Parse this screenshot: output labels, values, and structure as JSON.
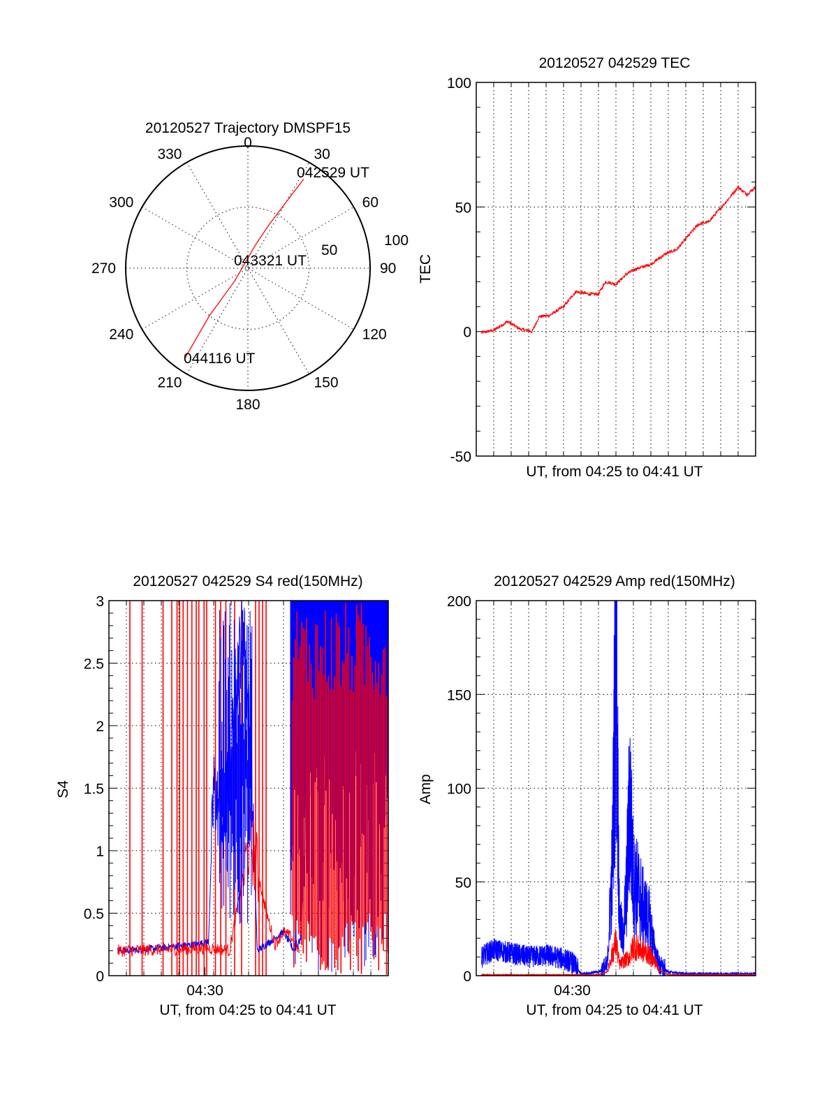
{
  "colors": {
    "red": "#ff0000",
    "blue": "#0000ff",
    "axis": "#000000",
    "background": "#ffffff"
  },
  "chart_data": [
    {
      "type": "polar",
      "title": "20120527 Trajectory DMSPF15",
      "azimuth_labels": [
        "0",
        "30",
        "60",
        "90",
        "120",
        "150",
        "180",
        "210",
        "240",
        "270",
        "300",
        "330"
      ],
      "radial_labels": [
        "50",
        "100"
      ],
      "radial_range": [
        0,
        100
      ],
      "series": [
        {
          "color": "#ff0000",
          "points": [
            {
              "az": 32,
              "r": 86
            },
            {
              "az": 30,
              "r": 62
            },
            {
              "az": 26,
              "r": 40
            },
            {
              "az": 18,
              "r": 20
            },
            {
              "az": 226,
              "r": 15
            },
            {
              "az": 219,
              "r": 50
            },
            {
              "az": 215,
              "r": 90
            }
          ]
        }
      ],
      "annotations": [
        {
          "text": "042529 UT",
          "az": 33,
          "r": 88
        },
        {
          "text": "043321 UT",
          "az": 74,
          "r": 10
        },
        {
          "text": "044116 UT",
          "az": 210,
          "r": 95
        }
      ]
    },
    {
      "type": "line",
      "title": "20120527 042529 TEC",
      "xlabel": "UT, from 04:25 to 04:41 UT",
      "ylabel": "TEC",
      "xlim": [
        0,
        16
      ],
      "ylim": [
        -50,
        100
      ],
      "yticks": [
        "-50",
        "0",
        "50",
        "100"
      ],
      "grid": true,
      "series": [
        {
          "color": "#ff0000",
          "x": [
            0.3,
            1.0,
            1.8,
            2.5,
            3.2,
            3.6,
            4.2,
            5.0,
            5.7,
            6.5,
            7.0,
            7.4,
            8.0,
            8.6,
            9.1,
            10.0,
            10.8,
            11.5,
            12.1,
            12.7,
            13.3,
            13.8,
            14.3,
            15.0,
            15.5,
            16.0
          ],
          "y": [
            -0.5,
            0.5,
            4,
            1,
            0,
            6,
            6.5,
            10,
            16,
            15,
            15,
            20,
            19,
            23,
            25,
            27,
            31,
            33,
            38,
            43,
            44,
            48,
            52,
            58,
            55,
            58
          ]
        }
      ]
    },
    {
      "type": "line",
      "title": "20120527 042529 S4 red(150MHz)",
      "xlabel": "UT, from 04:25 to 04:41 UT",
      "ylabel": "S4",
      "xticks": [
        {
          "value": 5.5,
          "label": "04:30"
        }
      ],
      "xlim": [
        0,
        16
      ],
      "ylim": [
        0,
        3
      ],
      "yticks": [
        "0",
        "0.5",
        "1",
        "1.5",
        "2",
        "2.5",
        "3"
      ],
      "grid": true,
      "series": [
        {
          "color": "#ff0000",
          "x": [
            0.5,
            5.9,
            6.9,
            8.1,
            9.0,
            9.5,
            10.0,
            10.5,
            10.9
          ],
          "y": [
            0.2,
            0.22,
            0.2,
            1.1,
            0.52,
            0.25,
            0.35,
            0.3,
            0.2
          ]
        },
        {
          "color": "#0000ff",
          "x": [
            0.5,
            2.0,
            3.5,
            5.0,
            5.7,
            6.0,
            6.5,
            6.9,
            7.3,
            7.7,
            8.1,
            8.5,
            9.0,
            9.5,
            10.0,
            10.6,
            11.0,
            11.3
          ],
          "y": [
            0.2,
            0.21,
            0.23,
            0.25,
            0.27,
            1.5,
            1.2,
            1.6,
            2.4,
            2.8,
            1.8,
            0.2,
            0.25,
            0.3,
            0.35,
            0.2,
            0.3,
            1.5
          ]
        }
      ],
      "spike_bands": [
        {
          "color": "#ff0000",
          "note": "vertical spikes reaching 3 across the plot; dense from about 10.5 to 16"
        },
        {
          "color": "#0000ff",
          "note": "dense values up to 3 between about 6 and 8.5 and from about 10.5 to 16"
        }
      ]
    },
    {
      "type": "line",
      "title": "20120527 042529 Amp red(150MHz)",
      "xlabel": "UT, from 04:25 to 04:41 UT",
      "ylabel": "Amp",
      "xticks": [
        {
          "value": 5.5,
          "label": "04:30"
        }
      ],
      "xlim": [
        0,
        16
      ],
      "ylim": [
        0,
        200
      ],
      "yticks": [
        "0",
        "50",
        "100",
        "150",
        "200"
      ],
      "grid": true,
      "series": [
        {
          "color": "#0000ff",
          "x": [
            0.3,
            1.0,
            2.0,
            3.0,
            4.0,
            5.0,
            5.5,
            6.0,
            7.0,
            7.5,
            7.8,
            8.0,
            8.2,
            8.4,
            8.6,
            8.8,
            9.0,
            9.3,
            9.6,
            9.9,
            10.2,
            10.5,
            11.0,
            12.0,
            13.0,
            14.0,
            15.0,
            16.0
          ],
          "y": [
            10,
            14,
            12,
            10,
            11,
            9,
            7,
            1,
            2,
            5,
            60,
            182,
            30,
            20,
            45,
            95,
            50,
            45,
            35,
            30,
            15,
            5,
            2,
            1,
            1,
            1,
            1,
            1
          ]
        },
        {
          "color": "#ff0000",
          "x": [
            0.3,
            3.0,
            6.0,
            7.0,
            7.5,
            7.8,
            8.0,
            8.2,
            8.5,
            8.8,
            9.0,
            9.4,
            9.8,
            10.2,
            10.5,
            11.0,
            16.0
          ],
          "y": [
            0.5,
            0.5,
            0.5,
            0.5,
            2,
            12,
            18,
            6,
            8,
            10,
            16,
            14,
            12,
            8,
            3,
            0.5,
            0.5
          ]
        }
      ]
    }
  ]
}
